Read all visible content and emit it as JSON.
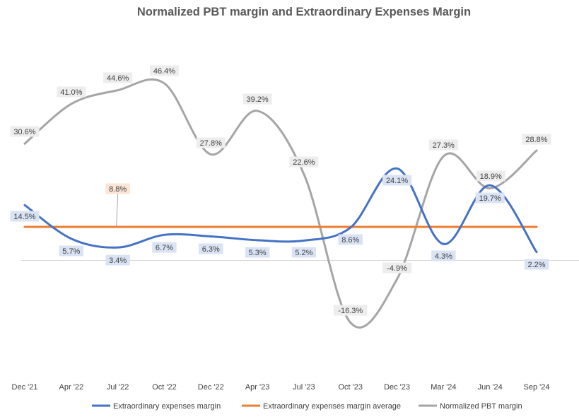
{
  "chart_data": {
    "type": "line",
    "title": "Normalized PBT margin and Extraordinary Expenses Margin",
    "categories": [
      "Dec '21",
      "Apr '22",
      "Jul '22",
      "Oct '22",
      "Dec '22",
      "Apr '23",
      "Jul '23",
      "Oct '23",
      "Dec '23",
      "Mar '24",
      "Jun '24",
      "Sep '24"
    ],
    "series": [
      {
        "name": "Extraordinary expenses margin",
        "color": "#4472C4",
        "smooth": true,
        "values": [
          14.5,
          5.7,
          3.4,
          6.7,
          6.3,
          5.3,
          5.2,
          8.6,
          24.1,
          4.3,
          19.7,
          2.2
        ],
        "labels": [
          "14.5%",
          "5.7%",
          "3.4%",
          "6.7%",
          "6.3%",
          "5.3%",
          "5.2%",
          "8.6%",
          "24.1%",
          "4.3%",
          "19.7%",
          "2.2%"
        ]
      },
      {
        "name": "Extraordinary expenses margin average",
        "color": "#ED7D31",
        "smooth": false,
        "values": [
          8.8,
          8.8,
          8.8,
          8.8,
          8.8,
          8.8,
          8.8,
          8.8,
          8.8,
          8.8,
          8.8,
          8.8
        ],
        "labels": [
          "",
          "",
          "8.8%",
          "",
          "",
          "",
          "",
          "",
          "",
          "",
          "",
          ""
        ]
      },
      {
        "name": "Normalized PBT margin",
        "color": "#A5A5A5",
        "smooth": true,
        "values": [
          30.6,
          41.0,
          44.6,
          46.4,
          27.8,
          39.2,
          22.6,
          -16.3,
          -4.9,
          27.3,
          18.9,
          28.8
        ],
        "labels": [
          "30.6%",
          "41.0%",
          "44.6%",
          "46.4%",
          "27.8%",
          "39.2%",
          "22.6%",
          "-16.3%",
          "-4.9%",
          "27.3%",
          "18.9%",
          "28.8%"
        ]
      }
    ],
    "ylim": [
      -30,
      70
    ],
    "grid": false,
    "zero_line": true,
    "legend_position": "bottom"
  }
}
